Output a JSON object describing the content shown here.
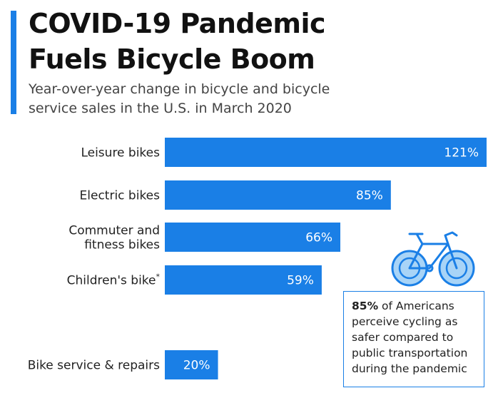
{
  "title_line1": "COVID-19 Pandemic",
  "title_line2": "Fuels Bicycle Boom",
  "subtitle_line1": "Year-over-year change in bicycle and bicycle",
  "subtitle_line2": "service sales in the U.S. in March 2020",
  "colors": {
    "accent": "#1a7fe6",
    "bar": "#1a7fe6",
    "icon_light": "#a8d4f7"
  },
  "chart_data": {
    "type": "bar",
    "orientation": "horizontal",
    "title": "COVID-19 Pandemic Fuels Bicycle Boom",
    "subtitle": "Year-over-year change in bicycle and bicycle service sales in the U.S. in March 2020",
    "categories": [
      {
        "lines": [
          "Leisure bikes"
        ],
        "footnote": ""
      },
      {
        "lines": [
          "Electric bikes"
        ],
        "footnote": ""
      },
      {
        "lines": [
          "Commuter and",
          "fitness bikes"
        ],
        "footnote": ""
      },
      {
        "lines": [
          "Children's bike"
        ],
        "footnote": "*"
      },
      {
        "lines": [
          "Bike service & repairs"
        ],
        "footnote": ""
      }
    ],
    "values": [
      121,
      85,
      66,
      59,
      20
    ],
    "value_labels": [
      "121%",
      "85%",
      "66%",
      "59%",
      "20%"
    ],
    "unit": "%",
    "xlim": [
      0,
      121
    ]
  },
  "callout": {
    "highlight": "85%",
    "line1_rest": " of Americans",
    "line2": "perceive cycling as",
    "line3": "safer compared to",
    "line4": "public transportation",
    "line5": "during the pandemic"
  },
  "icon": "bicycle-icon"
}
